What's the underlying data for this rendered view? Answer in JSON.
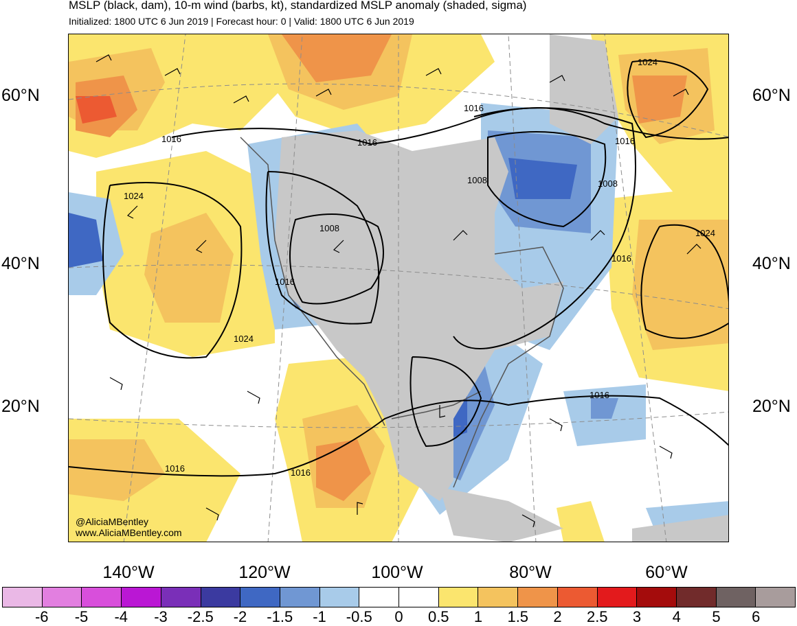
{
  "title": "MSLP (black, dam), 10-m wind (barbs, kt), standardized MSLP anomaly (shaded, sigma)",
  "subtitle": "Initialized: 1800 UTC 6 Jun 2019 | Forecast hour: 0 | Valid: 1800 UTC 6 Jun 2019",
  "latitude_labels": {
    "lat60_left": "60°N",
    "lat40_left": "40°N",
    "lat20_left": "20°N",
    "lat60_right": "60°N",
    "lat40_right": "40°N",
    "lat20_right": "20°N"
  },
  "longitude_labels": {
    "lon140": "140°W",
    "lon120": "120°W",
    "lon100": "100°W",
    "lon80": "80°W",
    "lon60": "60°W"
  },
  "contour_labels": {
    "c1": "1016",
    "c2": "1024",
    "c3": "1016",
    "c4": "1008",
    "c5": "1016",
    "c6": "1008",
    "c7": "1008",
    "c8": "1016",
    "c9": "1024",
    "c10": "1016",
    "c11": "1016",
    "c12": "1024",
    "c13": "1016",
    "c14": "1024",
    "c15": "1016",
    "c16": "1016",
    "c17": "1016"
  },
  "credit": {
    "handle": "@AliciaMBentley",
    "website": "www.AliciaMBentley.com"
  },
  "colorbar": {
    "ticks": [
      "-6",
      "-5",
      "-4",
      "-3",
      "-2.5",
      "-2",
      "-1.5",
      "-1",
      "-0.5",
      "0",
      "0.5",
      "1",
      "1.5",
      "2",
      "2.5",
      "3",
      "4",
      "5",
      "6"
    ],
    "colors": [
      "#eab8e6",
      "#e27fe0",
      "#d84fdb",
      "#ba17d4",
      "#7a2fb8",
      "#3b3aa0",
      "#3f68c3",
      "#7097d3",
      "#a8cbe9",
      "#ffffff",
      "#ffffff",
      "#fbe56e",
      "#f4c35e",
      "#ef9449",
      "#ec5a32",
      "#e31a1c",
      "#a40c0c",
      "#712b2b",
      "#6f6262",
      "#a89c9c"
    ]
  },
  "colors": {
    "land_gray": "#c8c8c8",
    "coast": "#555555",
    "contour": "#000000",
    "graticule": "#8c8c8c"
  }
}
